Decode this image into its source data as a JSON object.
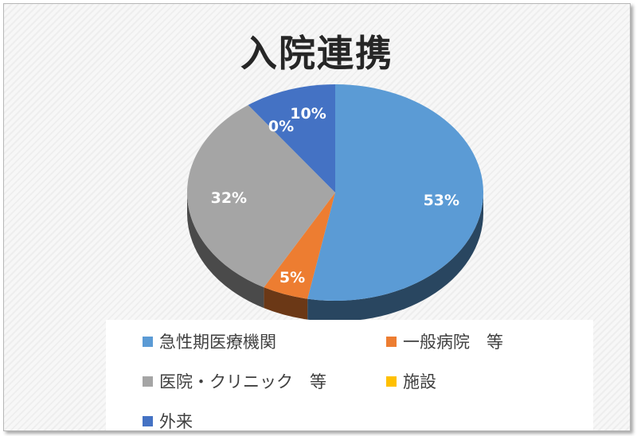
{
  "chart_data": {
    "type": "pie",
    "title": "入院連携",
    "categories": [
      "急性期医療機関",
      "一般病院　等",
      "医院・クリニック　等",
      "施設",
      "外来"
    ],
    "values": [
      53,
      5,
      32,
      0,
      10
    ],
    "labels": [
      "53%",
      "5%",
      "32%",
      "0%",
      "10%"
    ],
    "colors": [
      "#5b9bd5",
      "#ed7d31",
      "#a5a5a5",
      "#ffc000",
      "#4472c4"
    ],
    "legend_position": "bottom",
    "style": "3d"
  }
}
